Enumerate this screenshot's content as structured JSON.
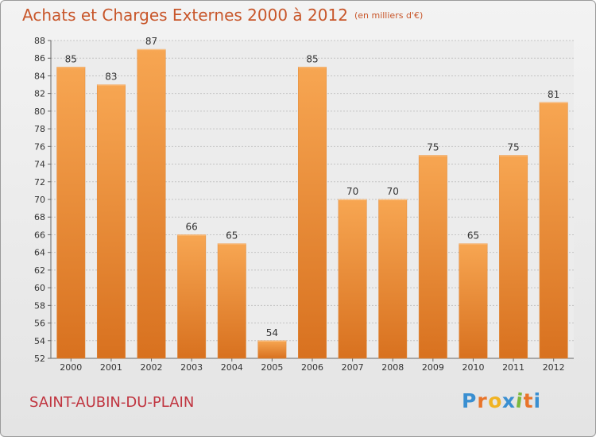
{
  "header": {
    "title": "Achats et Charges Externes 2000 à 2012",
    "subtitle": "(en milliers d'€)"
  },
  "footer": {
    "city": "SAINT-AUBIN-DU-PLAIN",
    "logo": "Proxiti"
  },
  "colors": {
    "title": "#c8562a",
    "city": "#c0343f",
    "bar_light": "#f7a652",
    "bar_dark": "#d8711f",
    "logo": [
      "#3a8fd1",
      "#e8742a",
      "#f0b323",
      "#3a8fd1",
      "#7bb83d",
      "#e8742a",
      "#3a8fd1"
    ]
  },
  "chart_data": {
    "type": "bar",
    "categories": [
      "2000",
      "2001",
      "2002",
      "2003",
      "2004",
      "2005",
      "2006",
      "2007",
      "2008",
      "2009",
      "2010",
      "2011",
      "2012"
    ],
    "values": [
      85,
      83,
      87,
      66,
      65,
      54,
      85,
      70,
      70,
      75,
      65,
      75,
      81
    ],
    "title": "Achats et Charges Externes 2000 à 2012",
    "subtitle": "(en milliers d'€)",
    "xlabel": "",
    "ylabel": "",
    "ylim": [
      52,
      88
    ],
    "yticks": [
      52,
      54,
      56,
      58,
      60,
      62,
      64,
      66,
      68,
      70,
      72,
      74,
      76,
      78,
      80,
      82,
      84,
      86,
      88
    ],
    "grid": true,
    "legend": "none"
  }
}
